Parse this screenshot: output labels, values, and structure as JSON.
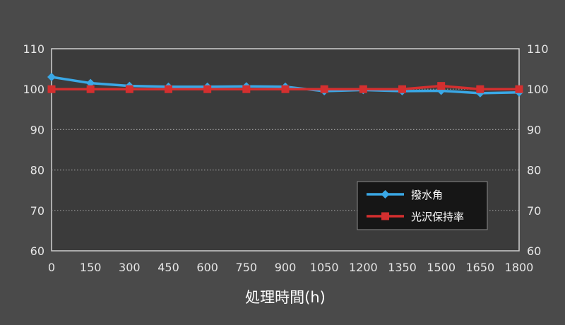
{
  "chart_data": {
    "type": "line",
    "title": "",
    "xlabel": "処理時間(h)",
    "x": [
      0,
      150,
      300,
      450,
      600,
      750,
      900,
      1050,
      1200,
      1350,
      1500,
      1650,
      1800
    ],
    "ylim": [
      60,
      110
    ],
    "y_ticks": [
      60,
      70,
      80,
      90,
      100,
      110
    ],
    "y2_ticks": [
      60,
      70,
      80,
      90,
      100,
      110
    ],
    "grid": "horizontal dotted",
    "legend_position": "right",
    "series": [
      {
        "name": "撥水角",
        "color": "#3aa8e6",
        "marker": "diamond",
        "values": [
          103,
          101.5,
          100.8,
          100.6,
          100.6,
          100.7,
          100.6,
          99.5,
          99.8,
          99.5,
          99.6,
          99,
          99.2
        ]
      },
      {
        "name": "光沢保持率",
        "color": "#d42f2f",
        "marker": "square",
        "values": [
          100,
          100,
          100,
          100,
          100,
          100,
          100,
          100,
          100,
          100,
          100.8,
          100,
          100
        ]
      }
    ]
  }
}
